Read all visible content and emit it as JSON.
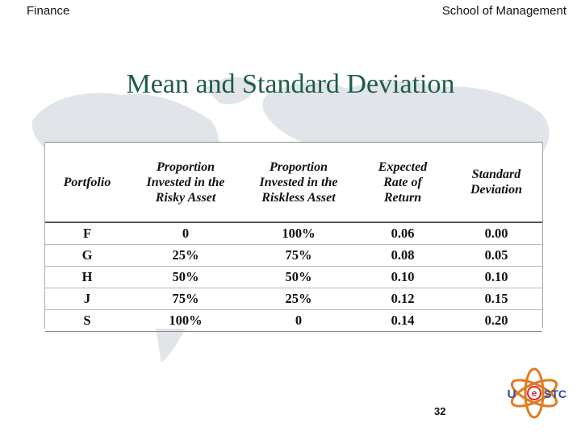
{
  "header": {
    "left": "Finance",
    "right": "School of Management"
  },
  "title": "Mean and Standard Deviation",
  "table": {
    "headers": [
      [
        "Portfolio"
      ],
      [
        "Proportion",
        "Invested in the",
        "Risky Asset"
      ],
      [
        "Proportion",
        "Invested in the",
        "Riskless Asset"
      ],
      [
        "Expected",
        "Rate of",
        "Return"
      ],
      [
        "Standard",
        "Deviation"
      ]
    ],
    "rows": [
      [
        "F",
        "0",
        "100%",
        "0.06",
        "0.00"
      ],
      [
        "G",
        "25%",
        "75%",
        "0.08",
        "0.05"
      ],
      [
        "H",
        "50%",
        "50%",
        "0.10",
        "0.10"
      ],
      [
        "J",
        "75%",
        "25%",
        "0.12",
        "0.15"
      ],
      [
        "S",
        "100%",
        "0",
        "0.14",
        "0.20"
      ]
    ]
  },
  "page_number": "32",
  "logo": {
    "text": "UESTC",
    "colors": {
      "ring": "#e07a1f",
      "u": "#2b4f9e",
      "stc": "#2b4f9e",
      "e": "#d9262c"
    }
  },
  "colors": {
    "title": "#1d5d45",
    "map": "#d9dce0"
  }
}
